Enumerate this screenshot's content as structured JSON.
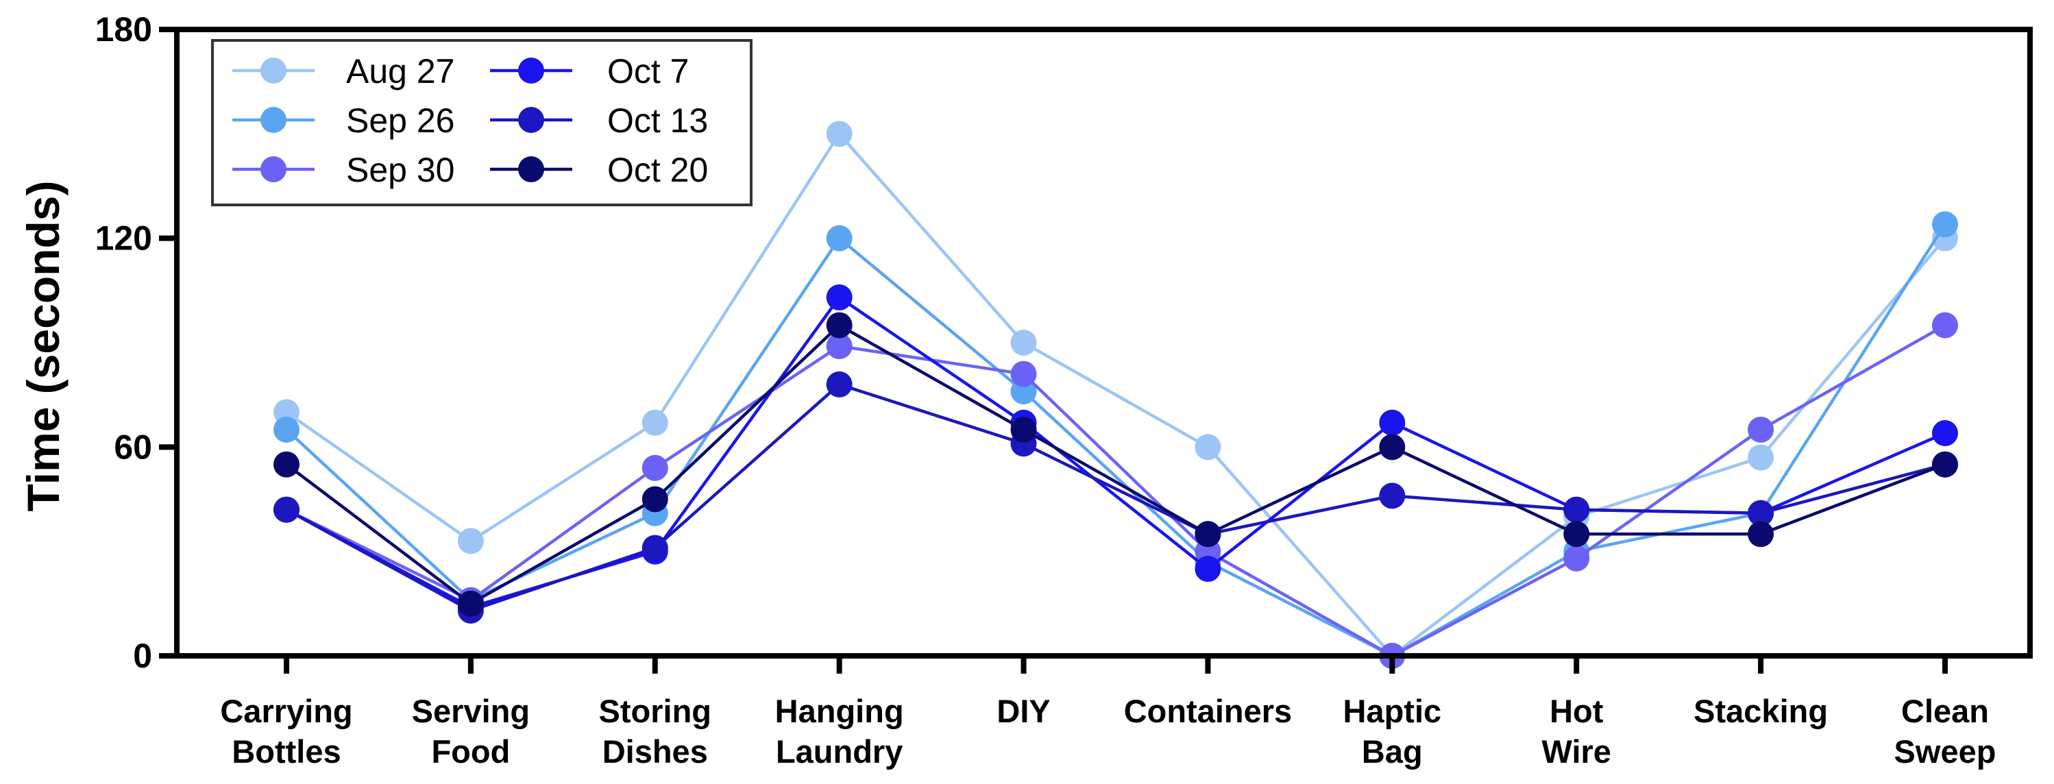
{
  "chart_data": {
    "type": "line",
    "title": "",
    "xlabel": "",
    "ylabel": "Time (seconds)",
    "ylim": [
      0,
      180
    ],
    "yticks": [
      "0",
      "60",
      "120",
      "180"
    ],
    "ytick_values": [
      0,
      60,
      120,
      180
    ],
    "categories": [
      [
        "Carrying",
        "Bottles"
      ],
      [
        "Serving",
        "Food"
      ],
      [
        "Storing",
        "Dishes"
      ],
      [
        "Hanging",
        "Laundry"
      ],
      [
        "DIY"
      ],
      [
        "Containers"
      ],
      [
        "Haptic",
        "Bag"
      ],
      [
        "Hot",
        "Wire"
      ],
      [
        "Stacking"
      ],
      [
        "Clean",
        "Sweep"
      ]
    ],
    "legend_position": "top-left",
    "series": [
      {
        "name": "Aug 27",
        "color": "#9cc5f5",
        "values": [
          70,
          33,
          67,
          150,
          90,
          60,
          0,
          40,
          57,
          120
        ]
      },
      {
        "name": "Sep 26",
        "color": "#5aa5f2",
        "values": [
          65,
          16,
          41,
          120,
          76,
          27,
          0,
          30,
          41,
          124
        ]
      },
      {
        "name": "Sep 30",
        "color": "#6b62f5",
        "values": [
          42,
          16,
          54,
          89,
          81,
          30,
          0,
          28,
          65,
          95
        ]
      },
      {
        "name": "Oct 7",
        "color": "#1a14ee",
        "values": [
          42,
          14,
          30,
          103,
          67,
          25,
          67,
          42,
          41,
          64
        ]
      },
      {
        "name": "Oct 13",
        "color": "#1c17bf",
        "values": [
          42,
          13,
          31,
          78,
          61,
          35,
          46,
          42,
          41,
          55
        ]
      },
      {
        "name": "Oct 20",
        "color": "#0a0a6e",
        "values": [
          55,
          15,
          45,
          95,
          65,
          35,
          60,
          35,
          35,
          55
        ]
      }
    ]
  }
}
